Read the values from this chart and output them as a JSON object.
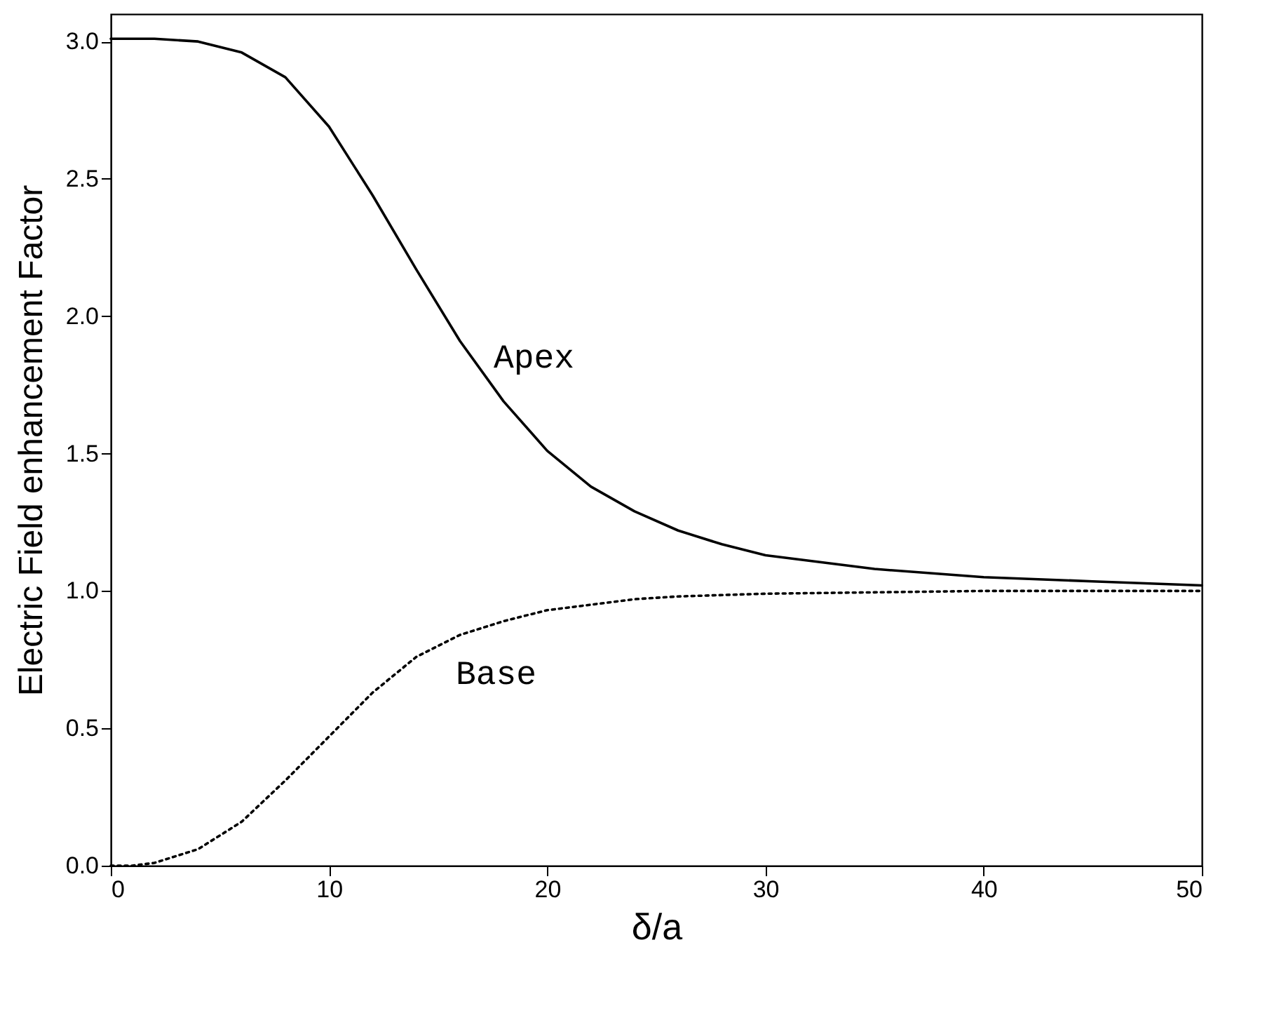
{
  "chart_data": {
    "type": "line",
    "xlabel": "δ/a",
    "ylabel": "Electric Field enhancement Factor",
    "xlim": [
      0,
      50
    ],
    "ylim": [
      0,
      3.1
    ],
    "xticks": [
      0,
      10,
      20,
      30,
      40,
      50
    ],
    "yticks": [
      {
        "value": 0,
        "label": "0.0"
      },
      {
        "value": 0.5,
        "label": "0.5"
      },
      {
        "value": 1,
        "label": "1.0"
      },
      {
        "value": 1.5,
        "label": "1.5"
      },
      {
        "value": 2,
        "label": "2.0"
      },
      {
        "value": 2.5,
        "label": "2.5"
      },
      {
        "value": 3,
        "label": "3.0"
      }
    ],
    "grid": false,
    "marker": "none",
    "series": [
      {
        "name": "Apex",
        "color": "#000000",
        "line_style": "solid",
        "x": [
          0,
          2,
          4,
          6,
          8,
          10,
          12,
          14,
          16,
          18,
          20,
          22,
          24,
          26,
          28,
          30,
          35,
          40,
          45,
          50
        ],
        "values": [
          3.01,
          3.01,
          3.0,
          2.96,
          2.87,
          2.69,
          2.44,
          2.17,
          1.91,
          1.69,
          1.51,
          1.38,
          1.29,
          1.22,
          1.17,
          1.13,
          1.08,
          1.05,
          1.035,
          1.02
        ]
      },
      {
        "name": "Base",
        "color": "#000000",
        "line_style": "dotted",
        "x": [
          0,
          1,
          2,
          4,
          6,
          8,
          10,
          12,
          14,
          16,
          18,
          20,
          22,
          24,
          26,
          28,
          30,
          35,
          40,
          45,
          50
        ],
        "values": [
          0,
          0,
          0.01,
          0.06,
          0.16,
          0.31,
          0.47,
          0.63,
          0.76,
          0.84,
          0.89,
          0.93,
          0.95,
          0.97,
          0.98,
          0.985,
          0.99,
          0.995,
          1.0,
          1.0,
          1.0
        ]
      }
    ]
  }
}
